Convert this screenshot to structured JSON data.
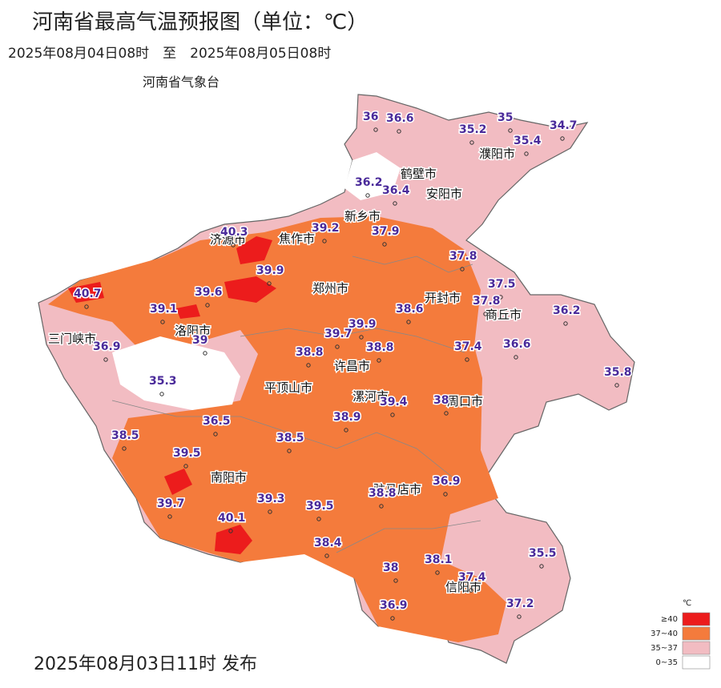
{
  "header": {
    "title": "河南省最高气温预报图（单位：℃）",
    "period": "2025年08月04日08时　至　2025年08月05日08时",
    "issuer": "河南省气象台"
  },
  "cities": [
    "濮阳市",
    "鹤壁市",
    "安阳市",
    "新乡市",
    "济源市",
    "焦作市",
    "郑州市",
    "开封市",
    "商丘市",
    "三门峡市",
    "洛阳市",
    "许昌市",
    "平顶山市",
    "漯河市",
    "周口市",
    "南阳市",
    "驻马店市",
    "信阳市"
  ],
  "temperatures": [
    36,
    36.6,
    35.2,
    35,
    34.7,
    35.4,
    36.2,
    36.4,
    39.2,
    40.3,
    37.9,
    37.8,
    39.9,
    37.5,
    40.7,
    39.6,
    37.8,
    39.1,
    38.6,
    36.2,
    39.7,
    39.9,
    39,
    36.9,
    38.8,
    38.8,
    37.4,
    36.6,
    35.8,
    35.3,
    39.4,
    38,
    38.9,
    36.5,
    38.5,
    38.5,
    39.5,
    36.9,
    38.8,
    39.7,
    39.3,
    39.5,
    40.1,
    35.5,
    38.4,
    38.1,
    38,
    37.4,
    37.2,
    36.9
  ],
  "legend": {
    "unit": "℃",
    "items": [
      {
        "label": "≥40",
        "color": "#ec1c1c"
      },
      {
        "label": "37~40",
        "color": "#f47b3c"
      },
      {
        "label": "35~37",
        "color": "#f2bcc2"
      },
      {
        "label": "0~35",
        "color": "#ffffff"
      }
    ]
  },
  "footer": {
    "issued": "2025年08月03日11时 发布"
  }
}
